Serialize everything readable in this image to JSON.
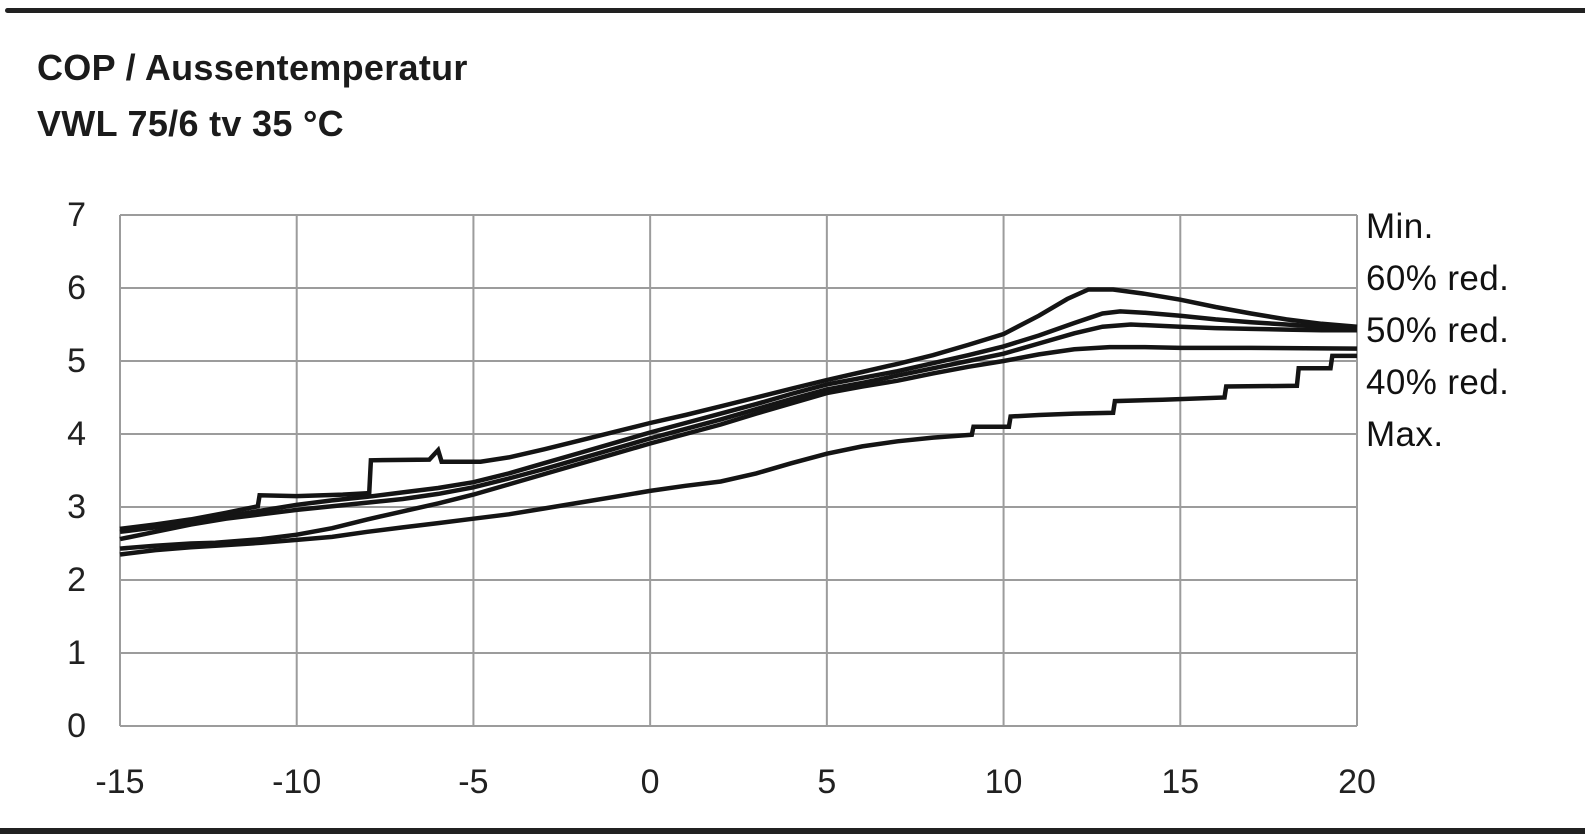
{
  "title": {
    "line1": "COP / Aussentemperatur",
    "line2": "VWL 75/6 tv 35 °C"
  },
  "colors": {
    "background": "#ffffff",
    "frame_rule": "#212121",
    "grid": "#9c9c9c",
    "curve": "#141414",
    "text": "#1b1b1b"
  },
  "chart_data": {
    "type": "line",
    "title": "COP / Aussentemperatur",
    "subtitle": "VWL 75/6 tv 35 °C",
    "xlabel": "",
    "ylabel": "",
    "xlim": [
      -15,
      20
    ],
    "ylim": [
      0,
      7
    ],
    "x_ticks": [
      -15,
      -10,
      -5,
      0,
      5,
      10,
      15,
      20
    ],
    "y_ticks": [
      7,
      6,
      5,
      4,
      3,
      2,
      1,
      0
    ],
    "grid": true,
    "legend_position": "right",
    "legend": [
      "Min.",
      "60% red.",
      "50% red.",
      "40% red.",
      "Max."
    ],
    "series": [
      {
        "name": "Min.",
        "points": [
          [
            -15,
            2.7
          ],
          [
            -14,
            2.76
          ],
          [
            -13,
            2.83
          ],
          [
            -12,
            2.92
          ],
          [
            -11.1,
            3.01
          ],
          [
            -11.05,
            3.16
          ],
          [
            -10,
            3.15
          ],
          [
            -8.7,
            3.17
          ],
          [
            -7.95,
            3.19
          ],
          [
            -7.9,
            3.64
          ],
          [
            -6.25,
            3.65
          ],
          [
            -6.0,
            3.78
          ],
          [
            -5.9,
            3.62
          ],
          [
            -4.8,
            3.62
          ],
          [
            -4,
            3.68
          ],
          [
            -3,
            3.79
          ],
          [
            -2,
            3.91
          ],
          [
            -1,
            4.03
          ],
          [
            0,
            4.15
          ],
          [
            1,
            4.26
          ],
          [
            2,
            4.38
          ],
          [
            3,
            4.5
          ],
          [
            4,
            4.62
          ],
          [
            5,
            4.74
          ],
          [
            6,
            4.85
          ],
          [
            7,
            4.96
          ],
          [
            8,
            5.08
          ],
          [
            9,
            5.22
          ],
          [
            10,
            5.37
          ],
          [
            11,
            5.62
          ],
          [
            11.8,
            5.85
          ],
          [
            12.4,
            5.98
          ],
          [
            13.1,
            5.98
          ],
          [
            14,
            5.92
          ],
          [
            15,
            5.84
          ],
          [
            16,
            5.74
          ],
          [
            17,
            5.65
          ],
          [
            18,
            5.57
          ],
          [
            19,
            5.51
          ],
          [
            20,
            5.47
          ]
        ]
      },
      {
        "name": "60% red.",
        "points": [
          [
            -15,
            2.66
          ],
          [
            -14,
            2.72
          ],
          [
            -13,
            2.79
          ],
          [
            -12,
            2.87
          ],
          [
            -11,
            2.95
          ],
          [
            -10,
            3.03
          ],
          [
            -9,
            3.09
          ],
          [
            -8,
            3.14
          ],
          [
            -7,
            3.2
          ],
          [
            -6,
            3.26
          ],
          [
            -5,
            3.34
          ],
          [
            -4,
            3.46
          ],
          [
            -3,
            3.6
          ],
          [
            -2,
            3.74
          ],
          [
            -1,
            3.88
          ],
          [
            0,
            4.02
          ],
          [
            1,
            4.15
          ],
          [
            2,
            4.28
          ],
          [
            3,
            4.41
          ],
          [
            4,
            4.55
          ],
          [
            5,
            4.68
          ],
          [
            6,
            4.77
          ],
          [
            7,
            4.86
          ],
          [
            8,
            4.97
          ],
          [
            9,
            5.08
          ],
          [
            10,
            5.2
          ],
          [
            11,
            5.35
          ],
          [
            12,
            5.52
          ],
          [
            12.8,
            5.65
          ],
          [
            13.3,
            5.68
          ],
          [
            14,
            5.66
          ],
          [
            15,
            5.62
          ],
          [
            16,
            5.57
          ],
          [
            17,
            5.53
          ],
          [
            18,
            5.5
          ],
          [
            19,
            5.47
          ],
          [
            20,
            5.45
          ]
        ]
      },
      {
        "name": "50% red.",
        "points": [
          [
            -15,
            2.56
          ],
          [
            -14,
            2.66
          ],
          [
            -13,
            2.76
          ],
          [
            -12,
            2.84
          ],
          [
            -11,
            2.9
          ],
          [
            -10,
            2.96
          ],
          [
            -9,
            3.01
          ],
          [
            -8,
            3.06
          ],
          [
            -7,
            3.11
          ],
          [
            -6,
            3.18
          ],
          [
            -5,
            3.27
          ],
          [
            -4,
            3.39
          ],
          [
            -3,
            3.52
          ],
          [
            -2,
            3.66
          ],
          [
            -1,
            3.8
          ],
          [
            0,
            3.94
          ],
          [
            1,
            4.07
          ],
          [
            2,
            4.2
          ],
          [
            3,
            4.34
          ],
          [
            4,
            4.48
          ],
          [
            5,
            4.61
          ],
          [
            6,
            4.7
          ],
          [
            7,
            4.8
          ],
          [
            8,
            4.9
          ],
          [
            9,
            5.0
          ],
          [
            10,
            5.1
          ],
          [
            11,
            5.24
          ],
          [
            12,
            5.38
          ],
          [
            12.8,
            5.47
          ],
          [
            13.6,
            5.5
          ],
          [
            15,
            5.47
          ],
          [
            16,
            5.45
          ],
          [
            17,
            5.44
          ],
          [
            18,
            5.43
          ],
          [
            19,
            5.42
          ],
          [
            20,
            5.42
          ]
        ]
      },
      {
        "name": "40% red.",
        "points": [
          [
            -15,
            2.43
          ],
          [
            -14,
            2.47
          ],
          [
            -13,
            2.5
          ],
          [
            -12.3,
            2.51
          ],
          [
            -11,
            2.56
          ],
          [
            -10,
            2.62
          ],
          [
            -9,
            2.71
          ],
          [
            -8,
            2.83
          ],
          [
            -7,
            2.94
          ],
          [
            -6,
            3.05
          ],
          [
            -5,
            3.17
          ],
          [
            -4,
            3.31
          ],
          [
            -3,
            3.45
          ],
          [
            -2,
            3.59
          ],
          [
            -1,
            3.73
          ],
          [
            0,
            3.87
          ],
          [
            1,
            4.0
          ],
          [
            2,
            4.13
          ],
          [
            3,
            4.28
          ],
          [
            4,
            4.42
          ],
          [
            5,
            4.56
          ],
          [
            6,
            4.65
          ],
          [
            7,
            4.73
          ],
          [
            8,
            4.83
          ],
          [
            9,
            4.92
          ],
          [
            10,
            5.0
          ],
          [
            11,
            5.09
          ],
          [
            12,
            5.16
          ],
          [
            13,
            5.19
          ],
          [
            14,
            5.19
          ],
          [
            15,
            5.18
          ],
          [
            17,
            5.18
          ],
          [
            20,
            5.17
          ]
        ]
      },
      {
        "name": "Max.",
        "points": [
          [
            -15,
            2.35
          ],
          [
            -14,
            2.41
          ],
          [
            -13,
            2.45
          ],
          [
            -12.3,
            2.47
          ],
          [
            -11,
            2.51
          ],
          [
            -10,
            2.55
          ],
          [
            -9,
            2.59
          ],
          [
            -8,
            2.66
          ],
          [
            -7,
            2.72
          ],
          [
            -6,
            2.78
          ],
          [
            -5,
            2.84
          ],
          [
            -4,
            2.9
          ],
          [
            -3,
            2.98
          ],
          [
            -2,
            3.06
          ],
          [
            -1,
            3.14
          ],
          [
            0,
            3.22
          ],
          [
            1,
            3.29
          ],
          [
            2,
            3.35
          ],
          [
            3,
            3.46
          ],
          [
            4,
            3.6
          ],
          [
            5,
            3.73
          ],
          [
            6,
            3.83
          ],
          [
            7,
            3.9
          ],
          [
            8,
            3.95
          ],
          [
            9.1,
            3.99
          ],
          [
            9.15,
            4.1
          ],
          [
            10.15,
            4.1
          ],
          [
            10.2,
            4.24
          ],
          [
            11,
            4.26
          ],
          [
            12,
            4.28
          ],
          [
            13.1,
            4.29
          ],
          [
            13.15,
            4.45
          ],
          [
            14.5,
            4.47
          ],
          [
            16.25,
            4.5
          ],
          [
            16.3,
            4.65
          ],
          [
            18.3,
            4.66
          ],
          [
            18.35,
            4.9
          ],
          [
            19.25,
            4.9
          ],
          [
            19.3,
            5.07
          ],
          [
            20,
            5.07
          ]
        ]
      }
    ]
  }
}
